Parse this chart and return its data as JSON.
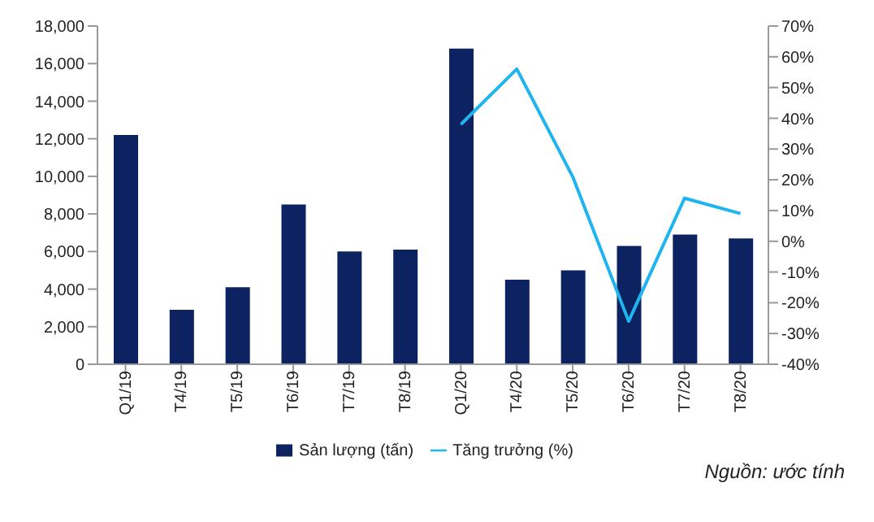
{
  "chart_data": {
    "type": "bar",
    "categories": [
      "Q1/19",
      "T4/19",
      "T5/19",
      "T6/19",
      "T7/19",
      "T8/19",
      "Q1/20",
      "T4/20",
      "T5/20",
      "T6/20",
      "T7/20",
      "T8/20"
    ],
    "series": [
      {
        "name": "Sản lượng (tấn)",
        "color": "#0d2260",
        "values": [
          12200,
          2900,
          4100,
          8500,
          6000,
          6100,
          16800,
          4500,
          5000,
          6300,
          6900,
          6700
        ]
      },
      {
        "name": "Tăng trưởng (%)",
        "type": "line",
        "axis": "y2",
        "color": "#1fb4ee",
        "values": [
          null,
          null,
          null,
          null,
          null,
          null,
          38,
          56,
          21,
          -26,
          14,
          9
        ]
      }
    ],
    "ylim": [
      0,
      18000
    ],
    "yticks": [
      {
        "value": 0,
        "label": "0"
      },
      {
        "value": 2000,
        "label": "2,000"
      },
      {
        "value": 4000,
        "label": "4,000"
      },
      {
        "value": 6000,
        "label": "6,000"
      },
      {
        "value": 8000,
        "label": "8,000"
      },
      {
        "value": 10000,
        "label": "10,000"
      },
      {
        "value": 12000,
        "label": "12,000"
      },
      {
        "value": 14000,
        "label": "14,000"
      },
      {
        "value": 16000,
        "label": "16,000"
      },
      {
        "value": 18000,
        "label": "18,000"
      }
    ],
    "y2lim": [
      -40,
      70
    ],
    "y2ticks": [
      {
        "value": -40,
        "label": "-40%"
      },
      {
        "value": -30,
        "label": "-30%"
      },
      {
        "value": -20,
        "label": "-20%"
      },
      {
        "value": -10,
        "label": "-10%"
      },
      {
        "value": 0,
        "label": "0%"
      },
      {
        "value": 10,
        "label": "10%"
      },
      {
        "value": 20,
        "label": "20%"
      },
      {
        "value": 30,
        "label": "30%"
      },
      {
        "value": 40,
        "label": "40%"
      },
      {
        "value": 50,
        "label": "50%"
      },
      {
        "value": 60,
        "label": "60%"
      },
      {
        "value": 70,
        "label": "70%"
      }
    ],
    "grid": false,
    "legend": "bottom",
    "marker": "none",
    "line_style": "solid",
    "annotations": [
      "Nguồn: ước tính"
    ]
  }
}
